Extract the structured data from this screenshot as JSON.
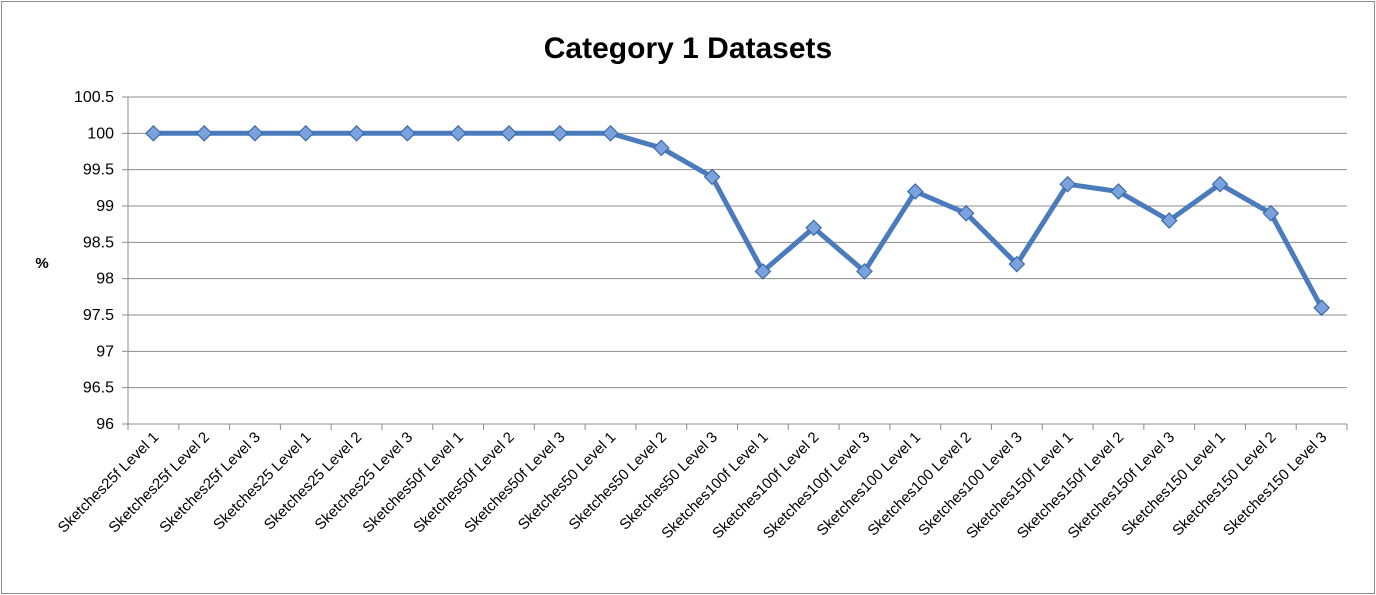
{
  "chart_data": {
    "type": "line",
    "title": "Category 1 Datasets",
    "xlabel": "",
    "ylabel": "%",
    "ylim": [
      96,
      100.5
    ],
    "yticks": [
      "96",
      "96.5",
      "97",
      "97.5",
      "98",
      "98.5",
      "99",
      "99.5",
      "100",
      "100.5"
    ],
    "grid": true,
    "legend": "none",
    "categories": [
      "Sketches25f Level 1",
      "Sketches25f Level 2",
      "Sketches25f Level 3",
      "Sketches25 Level 1",
      "Sketches25 Level 2",
      "Sketches25 Level 3",
      "Sketches50f Level 1",
      "Sketches50f Level 2",
      "Sketches50f Level 3",
      "Sketches50 Level 1",
      "Sketches50 Level 2",
      "Sketches50 Level 3",
      "Sketches100f Level 1",
      "Sketches100f Level 2",
      "Sketches100f Level 3",
      "Sketches100 Level 1",
      "Sketches100 Level 2",
      "Sketches100 Level 3",
      "Sketches150f Level 1",
      "Sketches150f Level 2",
      "Sketches150f Level 3",
      "Sketches150 Level 1",
      "Sketches150 Level 2",
      "Sketches150 Level 3"
    ],
    "series": [
      {
        "values": [
          100,
          100,
          100,
          100,
          100,
          100,
          100,
          100,
          100,
          100,
          99.8,
          99.4,
          98.1,
          98.7,
          98.1,
          99.2,
          98.9,
          98.2,
          99.3,
          99.2,
          98.8,
          99.3,
          98.9,
          97.6
        ]
      }
    ],
    "colors": {
      "line": "#4a7bbd",
      "marker_fill": "#7aa3de",
      "marker_stroke": "#3d69a8",
      "grid": "#8c8c8c"
    }
  }
}
